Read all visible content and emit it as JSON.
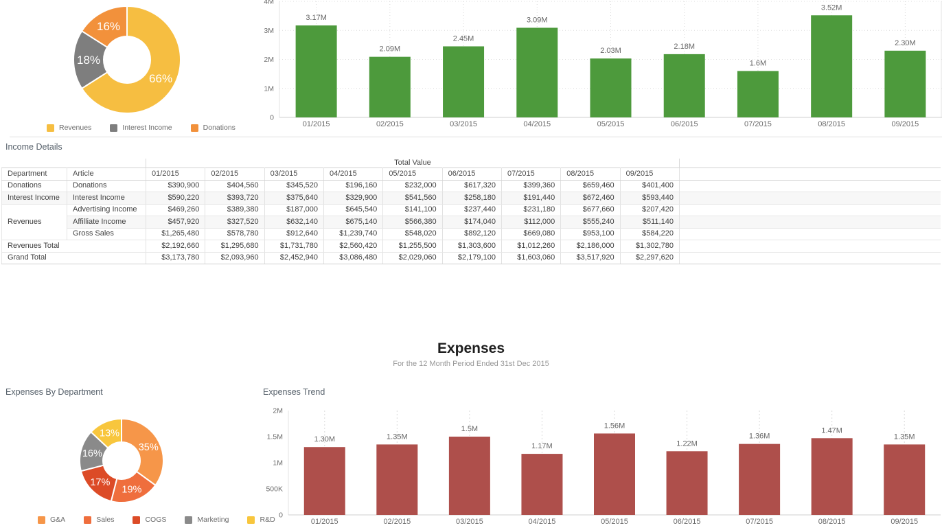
{
  "colors": {
    "income_donut_yellow": "#F6BE41",
    "income_donut_gray": "#7E7E7E",
    "income_donut_orange": "#F2913B",
    "income_bar_green": "#4D9A3C",
    "expense_bar_red": "#AE4F4B",
    "gna_orange": "#F69649",
    "sales_orange": "#EF6E3D",
    "cogs_red": "#DC4B27",
    "marketing_gray": "#8A8A8A",
    "rnd_yellow": "#F8C63D"
  },
  "income_details": {
    "title": "Income Details"
  },
  "expenses_header": {
    "title": "Expenses",
    "subtitle": "For the 12 Month Period Ended 31st Dec 2015"
  },
  "expenses_by_department": {
    "title": "Expenses By Department"
  },
  "expenses_trend": {
    "title": "Expenses Trend"
  },
  "chart_data": [
    {
      "id": "income-group-donut",
      "type": "pie",
      "legend_position": "bottom",
      "slices": [
        {
          "label": "Revenues",
          "value": 66,
          "display": "66%",
          "color": "#F6BE41"
        },
        {
          "label": "Interest Income",
          "value": 18,
          "display": "18%",
          "color": "#7E7E7E"
        },
        {
          "label": "Donations",
          "value": 16,
          "display": "16%",
          "color": "#F2913B"
        }
      ]
    },
    {
      "id": "income-trend-bar",
      "type": "bar",
      "title": "",
      "xlabel": "",
      "ylabel": "",
      "ylim": [
        0,
        4
      ],
      "grid": true,
      "color": "#4D9A3C",
      "categories": [
        "01/2015",
        "02/2015",
        "03/2015",
        "04/2015",
        "05/2015",
        "06/2015",
        "07/2015",
        "08/2015",
        "09/2015"
      ],
      "values": [
        3.17,
        2.09,
        2.45,
        3.09,
        2.03,
        2.18,
        1.6,
        3.52,
        2.3
      ],
      "labels": [
        "3.17M",
        "2.09M",
        "2.45M",
        "3.09M",
        "2.03M",
        "2.18M",
        "1.6M",
        "3.52M",
        "2.30M"
      ],
      "yticks": [
        {
          "v": 4,
          "label": "4M"
        },
        {
          "v": 3,
          "label": "3M"
        },
        {
          "v": 2,
          "label": "2M"
        },
        {
          "v": 1,
          "label": "1M"
        },
        {
          "v": 0,
          "label": "0"
        }
      ]
    },
    {
      "id": "income-details-table",
      "type": "table",
      "title": "Income Details",
      "group_header": "Total Value",
      "columns": [
        "Department",
        "Article",
        "01/2015",
        "02/2015",
        "03/2015",
        "04/2015",
        "05/2015",
        "06/2015",
        "07/2015",
        "08/2015",
        "09/2015"
      ],
      "rows": [
        {
          "department": "Donations",
          "article": "Donations",
          "values": [
            "$390,900",
            "$404,560",
            "$345,520",
            "$196,160",
            "$232,000",
            "$617,320",
            "$399,360",
            "$659,460",
            "$401,400"
          ]
        },
        {
          "department": "Interest Income",
          "article": "Interest Income",
          "stripe": true,
          "values": [
            "$590,220",
            "$393,720",
            "$375,640",
            "$329,900",
            "$541,560",
            "$258,180",
            "$191,440",
            "$672,460",
            "$593,440"
          ]
        },
        {
          "department": "Revenues",
          "dept_rowspan": 3,
          "article": "Advertising Income",
          "values": [
            "$469,260",
            "$389,380",
            "$187,000",
            "$645,540",
            "$141,100",
            "$237,440",
            "$231,180",
            "$677,660",
            "$207,420"
          ]
        },
        {
          "article": "Affilliate Income",
          "stripe": true,
          "values": [
            "$457,920",
            "$327,520",
            "$632,140",
            "$675,140",
            "$566,380",
            "$174,040",
            "$112,000",
            "$555,240",
            "$511,140"
          ]
        },
        {
          "article": "Gross Sales",
          "values": [
            "$1,265,480",
            "$578,780",
            "$912,640",
            "$1,239,740",
            "$548,020",
            "$892,120",
            "$669,080",
            "$953,100",
            "$584,220"
          ]
        },
        {
          "total": "Revenues Total",
          "values": [
            "$2,192,660",
            "$1,295,680",
            "$1,731,780",
            "$2,560,420",
            "$1,255,500",
            "$1,303,600",
            "$1,012,260",
            "$2,186,000",
            "$1,302,780"
          ]
        },
        {
          "total": "Grand Total",
          "grand": true,
          "values": [
            "$3,173,780",
            "$2,093,960",
            "$2,452,940",
            "$3,086,480",
            "$2,029,060",
            "$2,179,100",
            "$1,603,060",
            "$3,517,920",
            "$2,297,620"
          ]
        }
      ]
    },
    {
      "id": "expenses-dept-donut",
      "type": "pie",
      "legend_position": "bottom",
      "slices": [
        {
          "label": "G&A",
          "value": 35,
          "display": "35%",
          "color": "#F69649"
        },
        {
          "label": "Sales",
          "value": 19,
          "display": "19%",
          "color": "#EF6E3D"
        },
        {
          "label": "COGS",
          "value": 17,
          "display": "17%",
          "color": "#DC4B27"
        },
        {
          "label": "Marketing",
          "value": 16,
          "display": "16%",
          "color": "#8A8A8A"
        },
        {
          "label": "R&D",
          "value": 13,
          "display": "13%",
          "color": "#F8C63D"
        }
      ]
    },
    {
      "id": "expenses-trend-bar",
      "type": "bar",
      "title": "Expenses Trend",
      "xlabel": "",
      "ylabel": "",
      "ylim": [
        0,
        2
      ],
      "grid": true,
      "color": "#AE4F4B",
      "categories": [
        "01/2015",
        "02/2015",
        "03/2015",
        "04/2015",
        "05/2015",
        "06/2015",
        "07/2015",
        "08/2015",
        "09/2015"
      ],
      "values": [
        1.3,
        1.35,
        1.5,
        1.17,
        1.56,
        1.22,
        1.36,
        1.47,
        1.35
      ],
      "labels": [
        "1.30M",
        "1.35M",
        "1.5M",
        "1.17M",
        "1.56M",
        "1.22M",
        "1.36M",
        "1.47M",
        "1.35M"
      ],
      "yticks": [
        {
          "v": 2,
          "label": "2M"
        },
        {
          "v": 1.5,
          "label": "1.5M"
        },
        {
          "v": 1,
          "label": "1M"
        },
        {
          "v": 0.5,
          "label": "500K"
        },
        {
          "v": 0,
          "label": "0"
        }
      ]
    }
  ]
}
